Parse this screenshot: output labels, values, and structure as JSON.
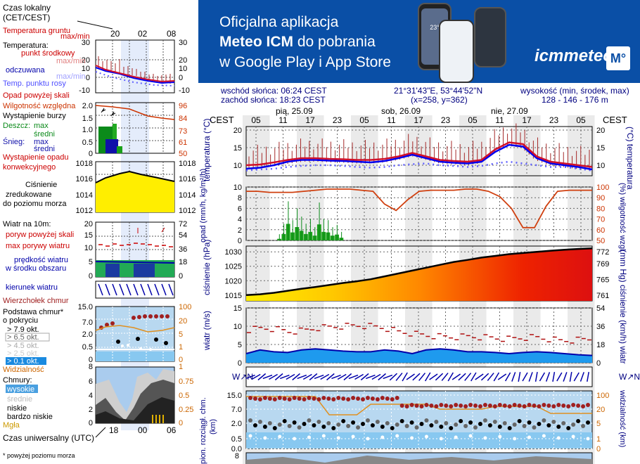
{
  "banner": {
    "line1": "Oficjalna aplikacja",
    "line2a": "Meteo ICM",
    "line2b": " do pobrania",
    "line3": "w Google Play i App Store",
    "logo": "icmmeteo",
    "logo_badge": "M°",
    "phone_temp": "23°"
  },
  "info": {
    "sunrise": "wschód słońca: 06:24 CEST",
    "sunset": "zachód słońca: 18:23 CEST",
    "coords": "21°31'43\"E, 53°44'52\"N",
    "grid": "(x=258,  y=362)",
    "elev_label": "wysokość (min, środek, max)",
    "elev_values": "128 - 146 - 176 m"
  },
  "legend": {
    "local_time": "Czas lokalny",
    "local_time2": "(CET/CEST)",
    "top_ticks": [
      "20",
      "02",
      "08"
    ],
    "ground_temp": "Temperatura gruntu",
    "max_min": "max/min",
    "temperature": "Temperatura:",
    "mid_point": "punkt środkowy",
    "max_min2": "max/min",
    "feels_like": "odczuwana",
    "max_min3": "max/min",
    "dew_point": "Temp. punktu rosy",
    "temp_ticks": [
      "30",
      "20",
      "10",
      "0",
      "-10"
    ],
    "precip_above": "Opad powyżej skali",
    "humidity": "Wilgotność względna",
    "storm": "Wystąpienie burzy",
    "rain": "Deszcz:",
    "snow": "Śnieg:",
    "max": "max",
    "mean": "średni",
    "max2": "max",
    "mean2": "średni",
    "precip_occur": "Wystąpienie opadu",
    "convective": "konwekcyjnego",
    "precip_ticks": [
      "2.0",
      "1.5",
      "1.0",
      "0.5",
      "0"
    ],
    "hum_ticks": [
      "96",
      "84",
      "73",
      "61",
      "50"
    ],
    "pressure1": "Ciśnienie",
    "pressure2": "zredukowane",
    "pressure3": "do poziomu morza",
    "press_ticks": [
      "1018",
      "1016",
      "1014",
      "1012"
    ],
    "wind_at": "Wiatr na 10m:",
    "gust_above": "poryw powyżej skali",
    "max_gust": "max porywy wiatru",
    "wind_speed": "prędkość wiatru",
    "area_mean": "w środku obszaru",
    "wind_ticks": [
      "20",
      "15",
      "10",
      "5",
      "0"
    ],
    "wind_kmh_ticks": [
      "72",
      "54",
      "36",
      "18",
      "0"
    ],
    "wind_dir": "kierunek wiatru",
    "cloud_top": "Wierzchołek chmur",
    "cloud_base": "Podstawa chmur*",
    "by_cover": "o pokryciu",
    "okt1": "> 7.9 okt.",
    "okt2": "> 6.5 okt.",
    "okt3": "> 4.5 okt.",
    "okt4": "> 2.5 okt.",
    "okt5": "> 0.1 okt.",
    "base_ticks": [
      "15.0",
      "7.0",
      "2.0",
      "0.5",
      "0"
    ],
    "vis_ticks": [
      "100",
      "20",
      "5",
      "1",
      "0"
    ],
    "visibility": "Widzialność",
    "clouds": "Chmury:",
    "high": "wysokie",
    "medium": "średnie",
    "low": "niskie",
    "very_low": "bardzo niskie",
    "fog": "Mgła",
    "cloud_ticks": [
      "8",
      "6",
      "4",
      "2",
      "0"
    ],
    "cloud_frac_ticks": [
      "1",
      "0.75",
      "0.5",
      "0.25",
      "0"
    ],
    "utc": "Czas uniwersalny (UTC)",
    "utc_ticks": [
      "18",
      "00",
      "06"
    ],
    "footnote": "* powyżej poziomu morza"
  },
  "axis": {
    "cest": "CEST",
    "days": [
      "pią, 25.09",
      "sob, 26.09",
      "nie, 27.09"
    ],
    "hours": [
      "05",
      "11",
      "17",
      "23",
      "05",
      "11",
      "17",
      "23",
      "05",
      "11",
      "17",
      "23",
      "05"
    ]
  },
  "chart_data": [
    {
      "type": "line",
      "name": "temperature",
      "ylabel": "temperatura (°C)",
      "ylabel2": "(°C) temperatura",
      "ylim": [
        7,
        21
      ],
      "yticks": [
        10,
        15,
        20
      ],
      "x": [
        "pią 05",
        "pią 08",
        "pią 11",
        "pią 14",
        "pią 17",
        "pią 20",
        "pią 23",
        "sob 02",
        "sob 05",
        "sob 08",
        "sob 11",
        "sob 14",
        "sob 17",
        "sob 20",
        "sob 23",
        "nie 02",
        "nie 05",
        "nie 08",
        "nie 11",
        "nie 14",
        "nie 17",
        "nie 20",
        "nie 23",
        "pon 02",
        "pon 05",
        "pon 08"
      ],
      "series": [
        {
          "values": [
            10,
            10.2,
            10.8,
            11.5,
            12,
            12,
            11.8,
            11.7,
            11.5,
            11.5,
            11.8,
            12.5,
            13.5,
            12.5,
            11.5,
            11.2,
            11,
            11.5,
            14.5,
            16.5,
            16,
            12.5,
            11,
            10.5,
            10,
            9.5
          ]
        },
        {
          "values": [
            9,
            9.3,
            10,
            11,
            11.5,
            11.5,
            11.3,
            11.2,
            11,
            10.8,
            11.2,
            12,
            13,
            12,
            11,
            10.7,
            10.5,
            11,
            13.8,
            15.8,
            15.3,
            12,
            10.5,
            10,
            9.5,
            8.8
          ]
        },
        {
          "values": [
            8.5,
            8.8,
            9,
            9.5,
            9.8,
            10,
            10,
            9.8,
            9.5,
            9.3,
            9.5,
            10,
            10.3,
            10.5,
            10,
            9.8,
            9.5,
            9.8,
            10.5,
            11,
            10.5,
            10,
            9.5,
            9.5,
            9,
            8.5
          ]
        }
      ]
    },
    {
      "type": "bar",
      "name": "precipitation",
      "ylabel": "opad (mm/h, kg/m²/h)",
      "ylabel2": "(%) wilgotność wzgl.",
      "ylim": [
        0,
        10
      ],
      "yticks": [
        0,
        2,
        4,
        6,
        8,
        10
      ],
      "y2ticks": [
        50,
        60,
        70,
        80,
        90,
        100
      ],
      "rain_values": [
        0,
        0,
        0,
        0,
        0,
        0,
        0,
        0.3,
        1.2,
        3.1,
        1.5,
        2.5,
        1.8,
        1.2,
        1.6,
        0.9,
        3.0,
        1.6,
        1.5,
        0.9,
        1.1,
        0.5,
        0,
        0,
        0,
        0,
        0,
        0,
        0,
        0,
        0,
        0,
        0,
        0,
        0,
        0,
        0,
        0,
        0,
        0,
        0,
        0,
        0,
        0,
        0,
        0,
        0,
        0,
        0,
        0,
        0,
        0,
        0,
        0,
        0,
        0,
        0,
        0,
        0,
        0,
        0,
        0,
        0,
        0,
        0,
        0,
        0,
        0,
        0,
        0,
        0,
        0,
        0,
        0,
        0,
        0,
        0,
        0
      ],
      "humidity_values": [
        96,
        96,
        95,
        95,
        95,
        96,
        97,
        98,
        98,
        98,
        97,
        96,
        84,
        78,
        88,
        96,
        97,
        97,
        97,
        98,
        98,
        96,
        91,
        80,
        62,
        62,
        82,
        96,
        97,
        97,
        97
      ]
    },
    {
      "type": "area",
      "name": "pressure",
      "ylabel": "ciśnienie (hPa)",
      "ylabel2": "(mm Hg) ciśnienie",
      "ylim": [
        1013,
        1032
      ],
      "yticks": [
        1015,
        1020,
        1025,
        1030
      ],
      "y2ticks": [
        761,
        765,
        769,
        772
      ],
      "values": [
        1015,
        1015.3,
        1015.8,
        1016.5,
        1017.2,
        1017.8,
        1018.5,
        1019.2,
        1019.8,
        1020.5,
        1021.5,
        1022.5,
        1023.5,
        1024.5,
        1025.5,
        1026.5,
        1027.2,
        1028,
        1028.6,
        1029.2,
        1029.6,
        1030,
        1030.4,
        1030.7,
        1031,
        1031.2
      ]
    },
    {
      "type": "line",
      "name": "wind",
      "ylabel": "wiatr (m/s)",
      "ylabel2": "(km/h) wiatr",
      "ylim": [
        0,
        15
      ],
      "yticks": [
        0,
        5,
        10,
        15
      ],
      "y2ticks": [
        0,
        18,
        36,
        54
      ],
      "gust": [
        9,
        9.5,
        9.2,
        8.5,
        8.8,
        9.5,
        9.8,
        10,
        10.2,
        10,
        9.5,
        8.5,
        8,
        7.5,
        7.2,
        7,
        7.2,
        7,
        6.8,
        6.5,
        6.8,
        7,
        6.5,
        6,
        6.2,
        6.5
      ],
      "speed": [
        2.5,
        3.5,
        3,
        2.8,
        3.5,
        3.8,
        3.5,
        3.2,
        3,
        3,
        3.5,
        3.2,
        2.5,
        3.5,
        3.8,
        3.5,
        3,
        3,
        2.8,
        2.5,
        2.8,
        3,
        2.8,
        2.5,
        2.2,
        2
      ]
    },
    {
      "type": "scatter",
      "name": "clouds",
      "ylabel": "pion. rozciągł. chm.",
      "ylabel_km": "(km)",
      "ylabel2": "widzialność (km)",
      "yticks": [
        "0.0",
        "0.5",
        "2.0",
        "7.0",
        "15.0"
      ],
      "y2ticks": [
        "0",
        "1",
        "5",
        "20",
        "100"
      ]
    }
  ]
}
